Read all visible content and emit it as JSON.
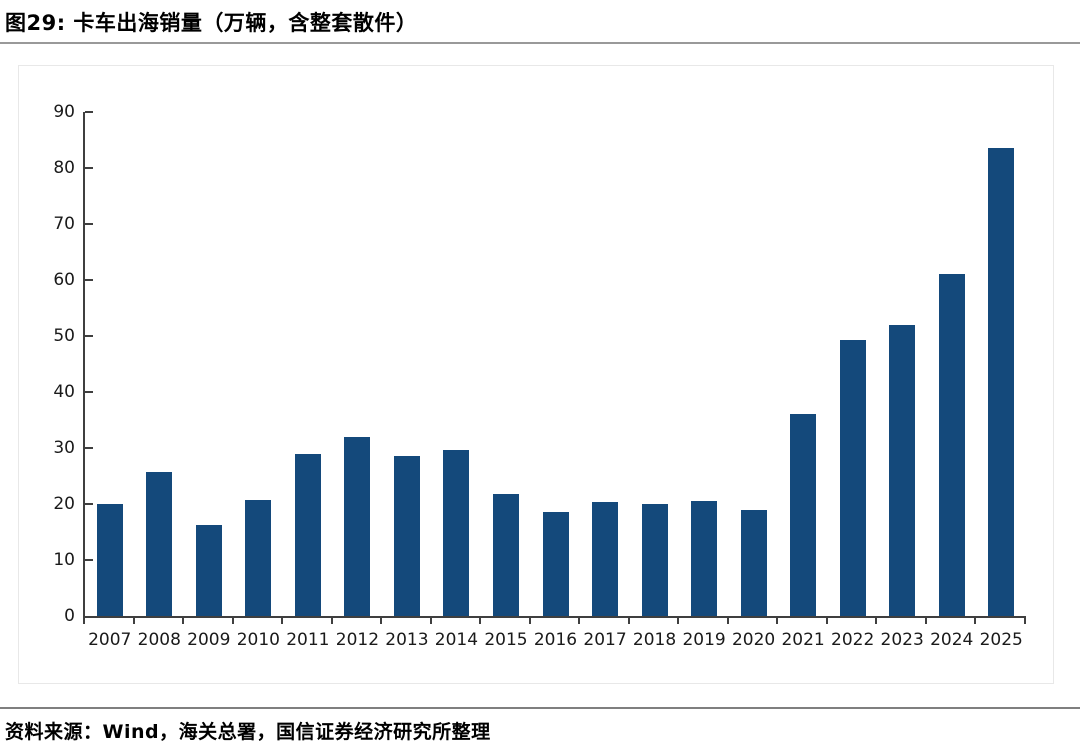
{
  "figure": {
    "title": "图29: 卡车出海销量（万辆，含整套散件）",
    "source": "资料来源：Wind，海关总署，国信证券经济研究所整理"
  },
  "chart_data": {
    "type": "bar",
    "title": "卡车出海销量（万辆，含整套散件）",
    "categories": [
      "2007",
      "2008",
      "2009",
      "2010",
      "2011",
      "2012",
      "2013",
      "2014",
      "2015",
      "2016",
      "2017",
      "2018",
      "2019",
      "2020",
      "2021",
      "2022",
      "2023",
      "2024",
      "2025"
    ],
    "values": [
      20.0,
      25.8,
      16.2,
      20.8,
      29.0,
      32.0,
      28.5,
      29.6,
      21.8,
      18.6,
      20.4,
      20.0,
      20.6,
      19.0,
      36.0,
      49.3,
      52.0,
      61.0,
      83.5
    ],
    "xlabel": "",
    "ylabel": "",
    "ylim": [
      0,
      90
    ],
    "yticks": [
      0,
      10,
      20,
      30,
      40,
      50,
      60,
      70,
      80,
      90
    ],
    "grid": false,
    "legend": "none",
    "bar_color": "#14497B"
  },
  "colors": {
    "bar": "#14497B",
    "axis": "#3f3f3f",
    "tick_text": "#1a1a1a",
    "title_rule": "#999999",
    "footer_rule": "#7f7f7f",
    "chart_border": "#e8e8e8"
  }
}
